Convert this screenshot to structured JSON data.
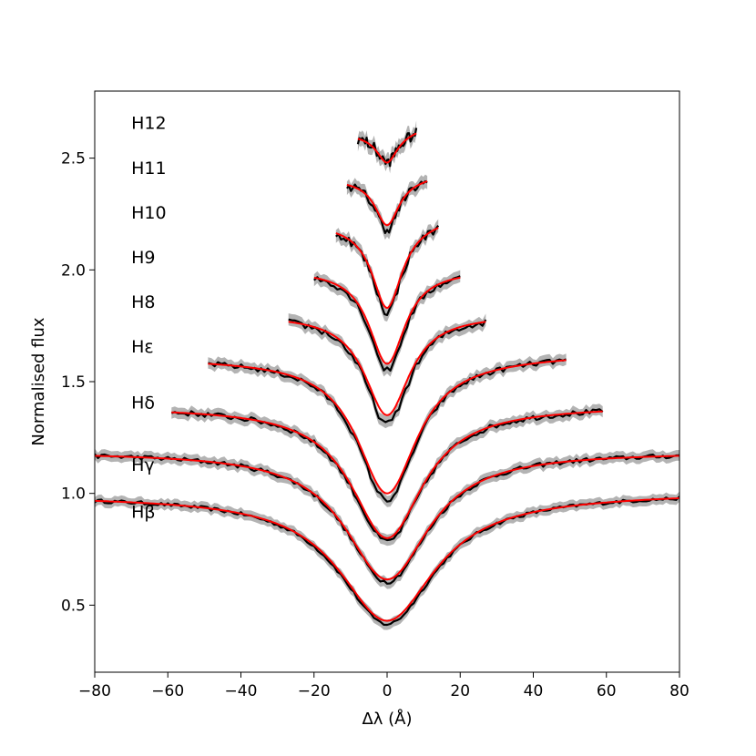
{
  "chart_data": {
    "type": "line",
    "title": "",
    "xlabel": "Δλ (Å)",
    "ylabel": "Normalised flux",
    "xlim": [
      -80,
      80
    ],
    "ylim": [
      0.2,
      2.8
    ],
    "xticks": [
      -80,
      -60,
      -40,
      -20,
      0,
      20,
      40,
      60,
      80
    ],
    "xtick_labels": [
      "−80",
      "−60",
      "−40",
      "−20",
      "0",
      "20",
      "40",
      "60",
      "80"
    ],
    "yticks": [
      0.5,
      1.0,
      1.5,
      2.0,
      2.5
    ],
    "ytick_labels": [
      "0.5",
      "1.0",
      "1.5",
      "2.0",
      "2.5"
    ],
    "grid": false,
    "legend": "none",
    "colors": {
      "observed": "#000000",
      "error_band": "#a6a6a6",
      "model": "#ff0000"
    },
    "series": [
      {
        "label": "Hβ",
        "label_pos": [
          -70,
          0.89
        ],
        "offset": 0.0,
        "x_range": [
          -80,
          80
        ],
        "continuum": 0.985,
        "depth": 0.57,
        "model_depth": 0.555,
        "width": 16,
        "edge": 1.0,
        "noise": 0.008
      },
      {
        "label": "Hγ",
        "label_pos": [
          -70,
          1.1
        ],
        "offset": 0.2,
        "x_range": [
          -80,
          80
        ],
        "continuum": 0.985,
        "depth": 0.58,
        "model_depth": 0.57,
        "width": 14,
        "edge": 0.985,
        "noise": 0.01
      },
      {
        "label": "Hδ",
        "label_pos": [
          -70,
          1.38
        ],
        "offset": 0.4,
        "x_range": [
          -59,
          59
        ],
        "continuum": 0.985,
        "depth": 0.6,
        "model_depth": 0.585,
        "width": 12,
        "edge": 0.99,
        "noise": 0.012
      },
      {
        "label": "Hε",
        "label_pos": [
          -70,
          1.63
        ],
        "offset": 0.6,
        "x_range": [
          -49,
          49
        ],
        "continuum": 1.0,
        "depth": 0.63,
        "model_depth": 0.6,
        "width": 10,
        "edge": 1.02,
        "noise": 0.012
      },
      {
        "label": "H8",
        "label_pos": [
          -70,
          1.83
        ],
        "offset": 0.8,
        "x_range": [
          -27,
          27
        ],
        "continuum": 1.0,
        "depth": 0.49,
        "model_depth": 0.45,
        "width": 7.5,
        "edge": 1.0,
        "noise": 0.015
      },
      {
        "label": "H9",
        "label_pos": [
          -70,
          2.03
        ],
        "offset": 1.0,
        "x_range": [
          -20,
          20
        ],
        "continuum": 1.0,
        "depth": 0.45,
        "model_depth": 0.42,
        "width": 6,
        "edge": 1.0,
        "noise": 0.015
      },
      {
        "label": "H10",
        "label_pos": [
          -70,
          2.23
        ],
        "offset": 1.2,
        "x_range": [
          -14,
          14
        ],
        "continuum": 1.0,
        "depth": 0.39,
        "model_depth": 0.37,
        "width": 5,
        "edge": 1.03,
        "noise": 0.018
      },
      {
        "label": "H11",
        "label_pos": [
          -70,
          2.43
        ],
        "offset": 1.4,
        "x_range": [
          -11,
          11
        ],
        "continuum": 1.0,
        "depth": 0.22,
        "model_depth": 0.2,
        "width": 4,
        "edge": 1.02,
        "noise": 0.02
      },
      {
        "label": "H12",
        "label_pos": [
          -70,
          2.63
        ],
        "offset": 1.6,
        "x_range": [
          -8,
          8
        ],
        "continuum": 1.0,
        "depth": 0.12,
        "model_depth": 0.12,
        "width": 3.5,
        "edge": 1.03,
        "noise": 0.025
      }
    ]
  }
}
